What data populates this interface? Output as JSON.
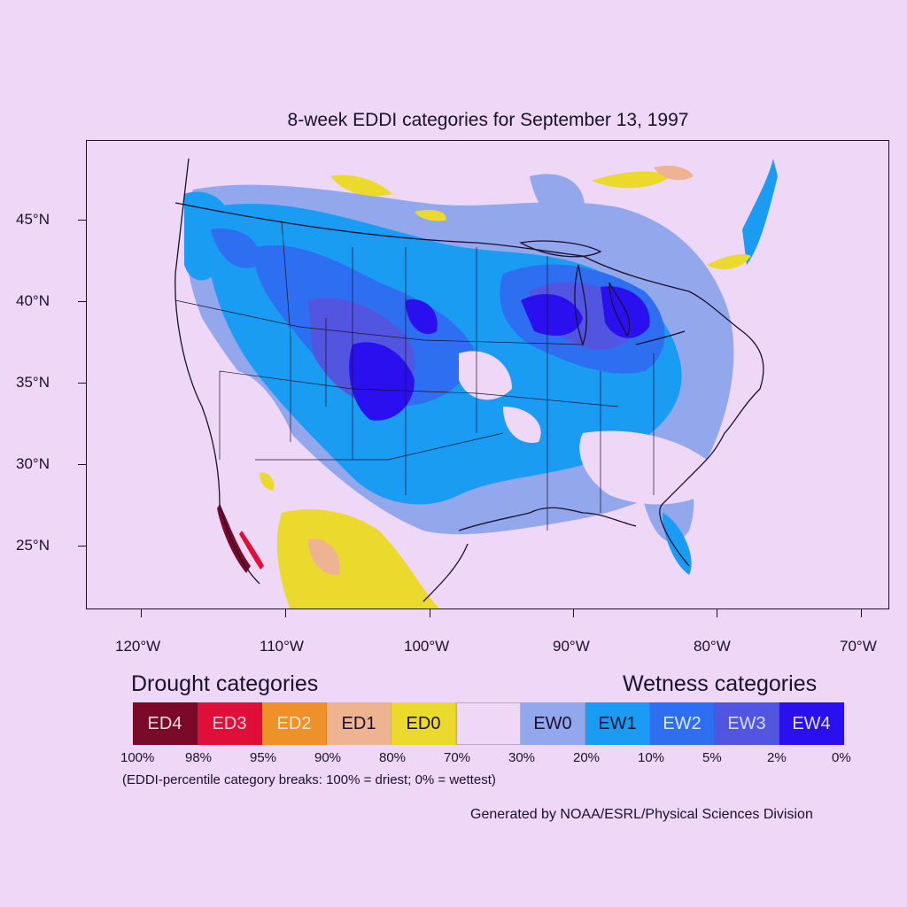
{
  "title": "8-week EDDI categories for September 13, 1997",
  "axes": {
    "lat_labels": [
      "45°N",
      "40°N",
      "35°N",
      "30°N",
      "25°N"
    ],
    "lon_labels": [
      "120°W",
      "110°W",
      "100°W",
      "90°W",
      "80°W",
      "70°W"
    ]
  },
  "legend": {
    "drought_heading": "Drought categories",
    "wetness_heading": "Wetness categories",
    "categories": [
      {
        "label": "ED4",
        "color": "#7a0a28",
        "text_color": "#f3dbe4"
      },
      {
        "label": "ED3",
        "color": "#df0f39",
        "text_color": "#fbd3de"
      },
      {
        "label": "ED2",
        "color": "#ee9128",
        "text_color": "#fde9cf"
      },
      {
        "label": "ED1",
        "color": "#eeb391",
        "text_color": "#1a1030"
      },
      {
        "label": "ED0",
        "color": "#ecd92e",
        "text_color": "#1a1030"
      },
      {
        "label": "",
        "color": "#efd7f7",
        "text_color": "#1a1030"
      },
      {
        "label": "EW0",
        "color": "#93a7ec",
        "text_color": "#1a1030"
      },
      {
        "label": "EW1",
        "color": "#1a9cf3",
        "text_color": "#1a1030"
      },
      {
        "label": "EW2",
        "color": "#2e6ef1",
        "text_color": "#dce8ff"
      },
      {
        "label": "EW3",
        "color": "#5255e0",
        "text_color": "#dcdcff"
      },
      {
        "label": "EW4",
        "color": "#2a10ee",
        "text_color": "#e4e0ff"
      }
    ],
    "percent_breaks": [
      "100%",
      "98%",
      "95%",
      "90%",
      "80%",
      "70%",
      "30%",
      "20%",
      "10%",
      "5%",
      "2%",
      "0%"
    ],
    "note": "(EDDI-percentile category breaks: 100% = driest; 0% = wettest)"
  },
  "credit": "Generated by NOAA/ESRL/Physical Sciences Division"
}
